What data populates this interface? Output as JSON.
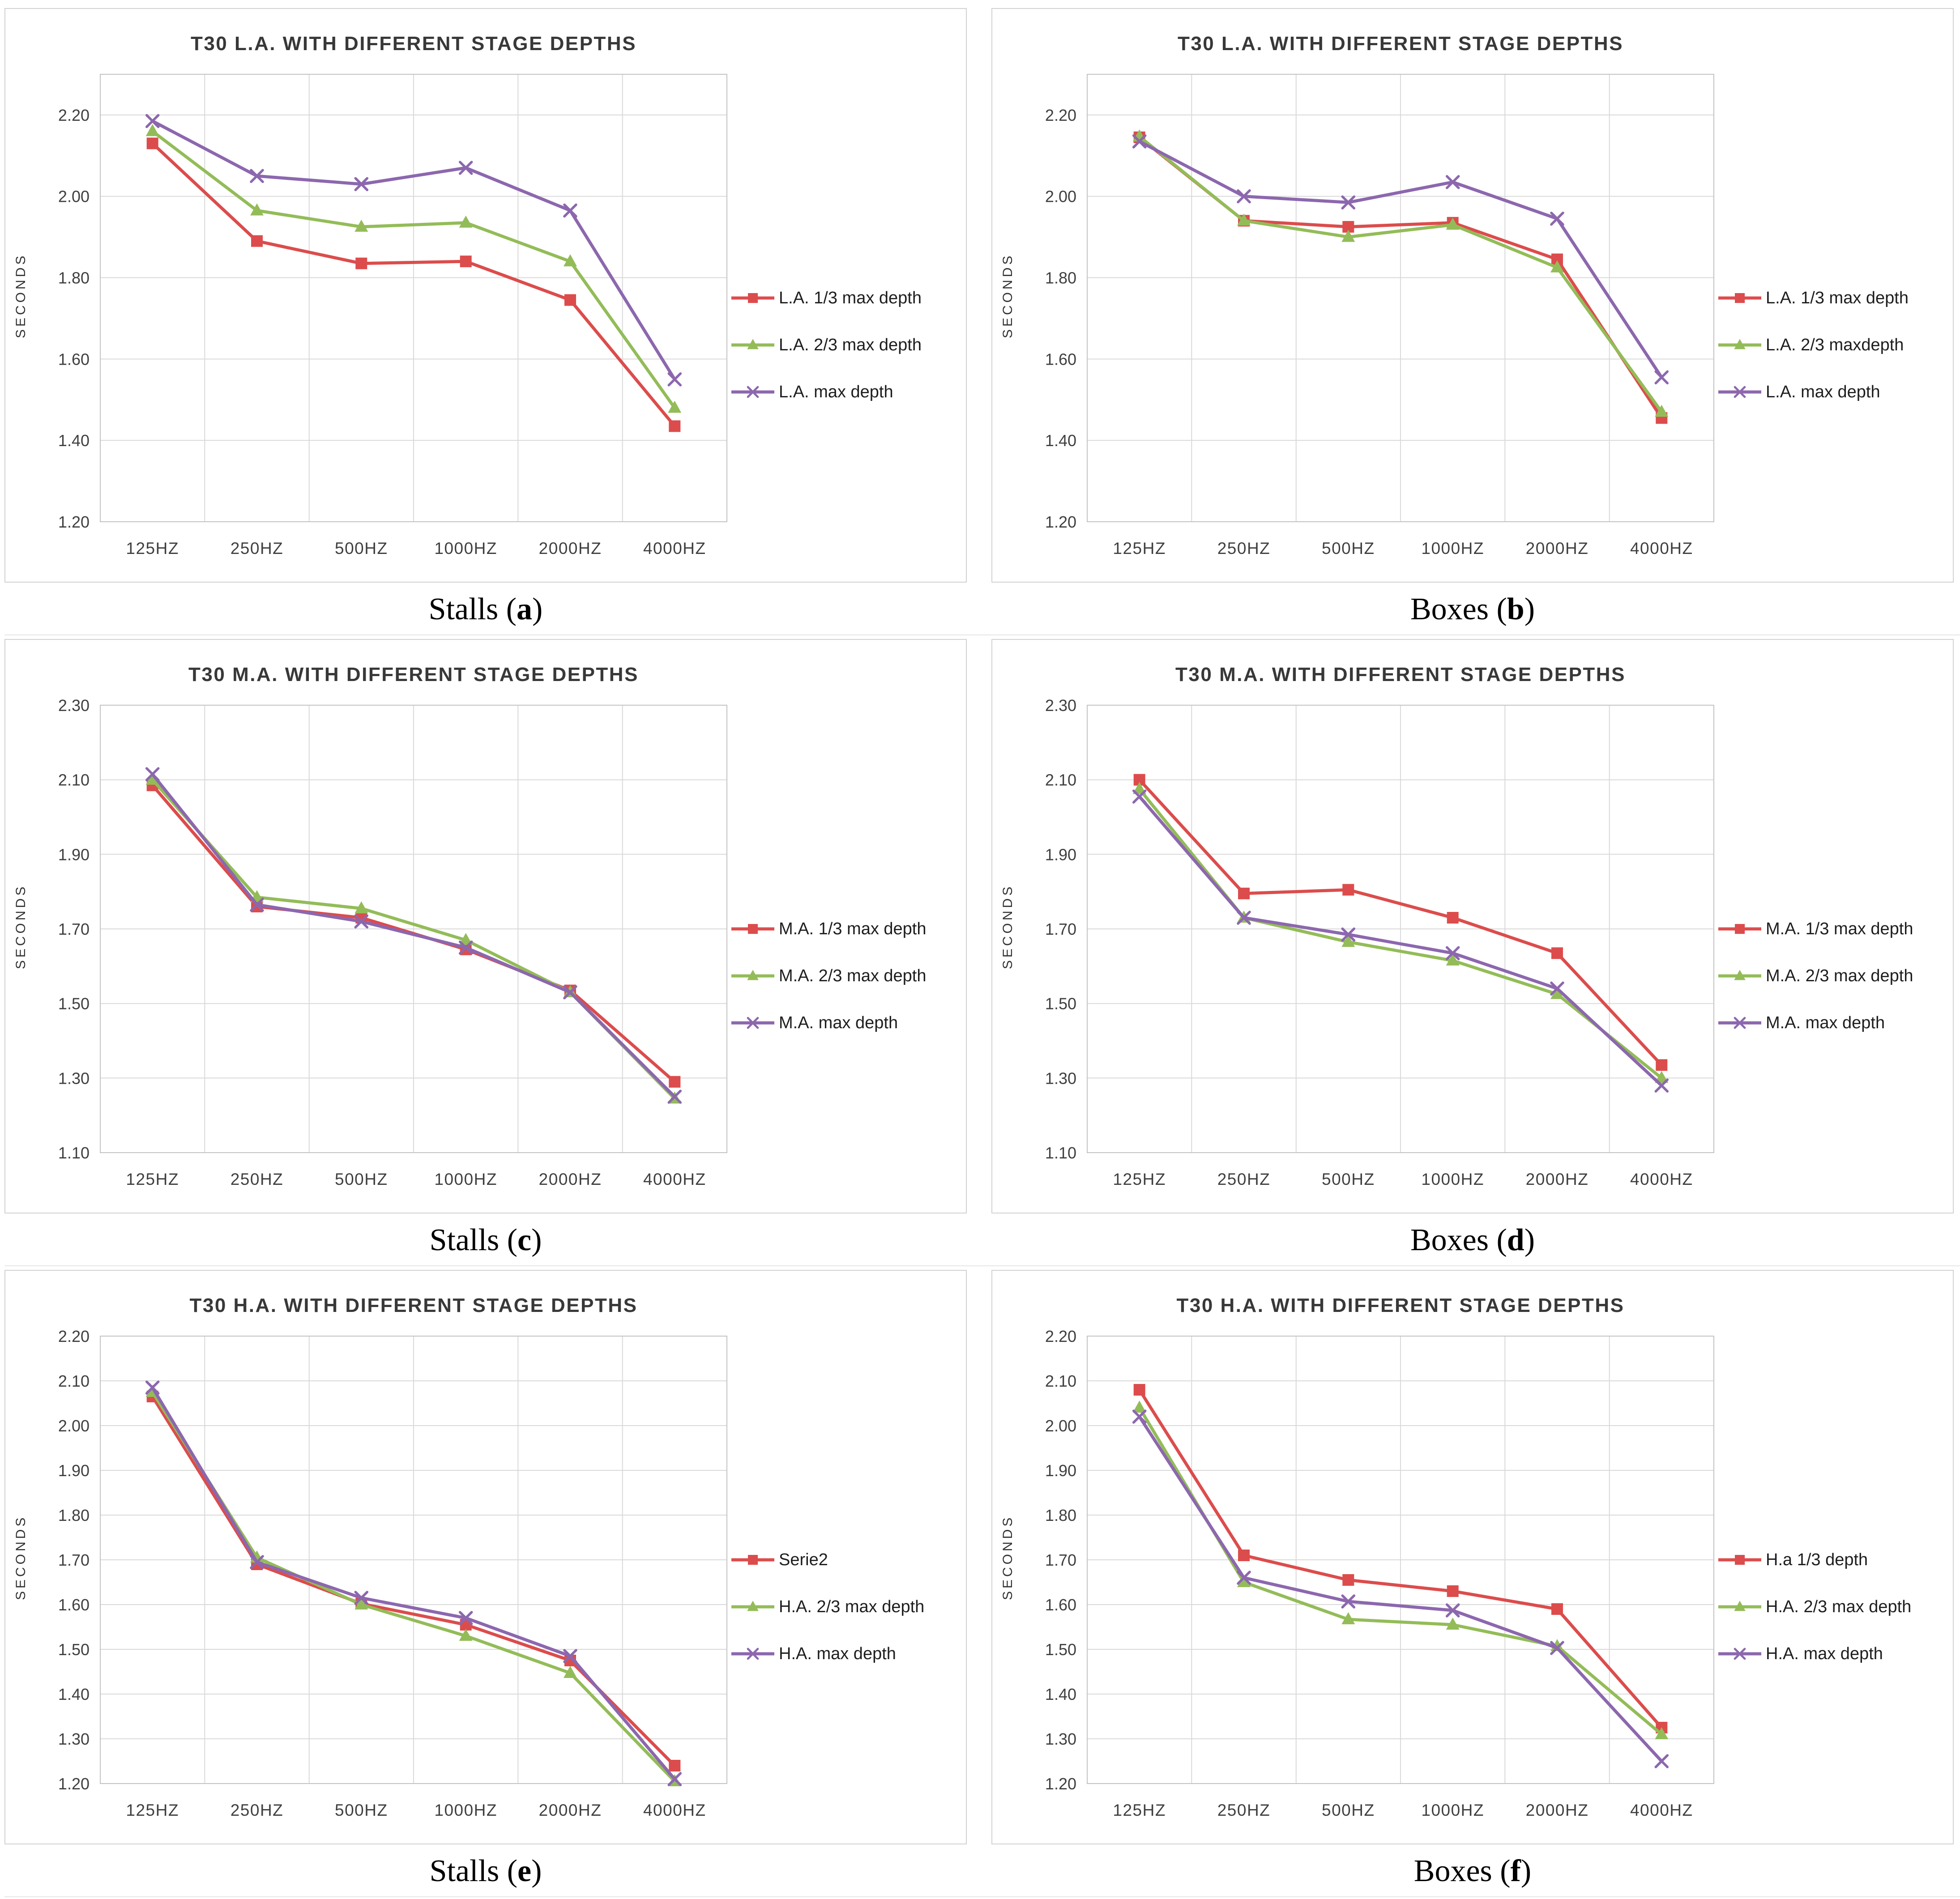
{
  "page": {
    "background": "#ffffff"
  },
  "styles": {
    "series_colors": {
      "red": "#DC4C4C",
      "green": "#93BC58",
      "purple": "#8C67AE"
    },
    "grid_color": "#D9D9D9",
    "plot_border_color": "#C3C3C3",
    "panel_border_color": "#D2D2D2",
    "tick_text_color": "#3F3F3F",
    "title_text_color": "#383838"
  },
  "chart_data": [
    {
      "panel": "a",
      "type": "line",
      "title": "T30 L.A. WITH DIFFERENT STAGE DEPTHS",
      "y_axis_title": "SECONDS",
      "caption": {
        "text": "Stalls",
        "open": " (",
        "letter": "a",
        "close": ")"
      },
      "categories": [
        "125HZ",
        "250HZ",
        "500HZ",
        "1000HZ",
        "2000HZ",
        "4000HZ"
      ],
      "y_axis": {
        "min": 1.2,
        "max": 2.3,
        "tick_values": [
          1.2,
          1.4,
          1.6,
          1.8,
          2.0,
          2.2
        ],
        "tick_labels": [
          "1.20",
          "1.40",
          "1.60",
          "1.80",
          "2.00",
          "2.20"
        ]
      },
      "legend_position": "right",
      "grid": true,
      "series": [
        {
          "name": "L.A. 1/3 max depth",
          "color": "red",
          "marker": "square",
          "values": [
            2.13,
            1.89,
            1.835,
            1.84,
            1.745,
            1.435
          ]
        },
        {
          "name": "L.A. 2/3 max depth",
          "color": "green",
          "marker": "triangle",
          "values": [
            2.16,
            1.965,
            1.925,
            1.935,
            1.84,
            1.48
          ]
        },
        {
          "name": "L.A. max depth",
          "color": "purple",
          "marker": "x",
          "values": [
            2.185,
            2.05,
            2.03,
            2.07,
            1.965,
            1.55
          ]
        }
      ]
    },
    {
      "panel": "b",
      "type": "line",
      "title": "T30 L.A. WITH DIFFERENT STAGE DEPTHS",
      "y_axis_title": "SECONDS",
      "caption": {
        "text": "Boxes",
        "open": " (",
        "letter": "b",
        "close": ")"
      },
      "categories": [
        "125HZ",
        "250HZ",
        "500HZ",
        "1000HZ",
        "2000HZ",
        "4000HZ"
      ],
      "y_axis": {
        "min": 1.2,
        "max": 2.3,
        "tick_values": [
          1.2,
          1.4,
          1.6,
          1.8,
          2.0,
          2.2
        ],
        "tick_labels": [
          "1.20",
          "1.40",
          "1.60",
          "1.80",
          "2.00",
          "2.20"
        ]
      },
      "legend_position": "right",
      "grid": true,
      "series": [
        {
          "name": "L.A. 1/3 max depth",
          "color": "red",
          "marker": "square",
          "values": [
            2.145,
            1.94,
            1.925,
            1.935,
            1.845,
            1.455
          ]
        },
        {
          "name": "L.A. 2/3 maxdepth",
          "color": "green",
          "marker": "triangle",
          "values": [
            2.147,
            1.94,
            1.9,
            1.93,
            1.825,
            1.47
          ]
        },
        {
          "name": "L.A. max depth",
          "color": "purple",
          "marker": "x",
          "values": [
            2.135,
            2.0,
            1.985,
            2.035,
            1.945,
            1.555
          ]
        }
      ]
    },
    {
      "panel": "c",
      "type": "line",
      "title": "T30 M.A. WITH DIFFERENT STAGE DEPTHS",
      "y_axis_title": "SECONDS",
      "caption": {
        "text": "Stalls",
        "open": " (",
        "letter": "c",
        "close": ")"
      },
      "categories": [
        "125HZ",
        "250HZ",
        "500HZ",
        "1000HZ",
        "2000HZ",
        "4000HZ"
      ],
      "y_axis": {
        "min": 1.1,
        "max": 2.3,
        "tick_values": [
          1.1,
          1.3,
          1.5,
          1.7,
          1.9,
          2.1,
          2.3
        ],
        "tick_labels": [
          "1.10",
          "1.30",
          "1.50",
          "1.70",
          "1.90",
          "2.10",
          "2.30"
        ]
      },
      "legend_position": "right",
      "grid": true,
      "series": [
        {
          "name": "M.A. 1/3 max depth",
          "color": "red",
          "marker": "square",
          "values": [
            2.085,
            1.76,
            1.73,
            1.645,
            1.535,
            1.29
          ]
        },
        {
          "name": "M.A. 2/3 max depth",
          "color": "green",
          "marker": "triangle",
          "values": [
            2.1,
            1.785,
            1.755,
            1.67,
            1.53,
            1.245
          ]
        },
        {
          "name": "M.A. max depth",
          "color": "purple",
          "marker": "x",
          "values": [
            2.115,
            1.765,
            1.72,
            1.65,
            1.53,
            1.25
          ]
        }
      ]
    },
    {
      "panel": "d",
      "type": "line",
      "title": "T30 M.A. WITH DIFFERENT STAGE DEPTHS",
      "y_axis_title": "SECONDS",
      "caption": {
        "text": "Boxes",
        "open": " (",
        "letter": "d",
        "close": ")"
      },
      "categories": [
        "125HZ",
        "250HZ",
        "500HZ",
        "1000HZ",
        "2000HZ",
        "4000HZ"
      ],
      "y_axis": {
        "min": 1.1,
        "max": 2.3,
        "tick_values": [
          1.1,
          1.3,
          1.5,
          1.7,
          1.9,
          2.1,
          2.3
        ],
        "tick_labels": [
          "1.10",
          "1.30",
          "1.50",
          "1.70",
          "1.90",
          "2.10",
          "2.30"
        ]
      },
      "legend_position": "right",
      "grid": true,
      "series": [
        {
          "name": "M.A. 1/3 max depth",
          "color": "red",
          "marker": "square",
          "values": [
            2.1,
            1.795,
            1.805,
            1.73,
            1.635,
            1.335
          ]
        },
        {
          "name": "M.A. 2/3 max depth",
          "color": "green",
          "marker": "triangle",
          "values": [
            2.075,
            1.73,
            1.665,
            1.615,
            1.525,
            1.3
          ]
        },
        {
          "name": "M.A. max depth",
          "color": "purple",
          "marker": "x",
          "values": [
            2.055,
            1.73,
            1.685,
            1.635,
            1.54,
            1.28
          ]
        }
      ]
    },
    {
      "panel": "e",
      "type": "line",
      "title": "T30 H.A. WITH DIFFERENT STAGE DEPTHS",
      "y_axis_title": "SECONDS",
      "caption": {
        "text": "Stalls",
        "open": " (",
        "letter": "e",
        "close": ")"
      },
      "categories": [
        "125HZ",
        "250HZ",
        "500HZ",
        "1000HZ",
        "2000HZ",
        "4000HZ"
      ],
      "y_axis": {
        "min": 1.2,
        "max": 2.2,
        "tick_values": [
          1.2,
          1.3,
          1.4,
          1.5,
          1.6,
          1.7,
          1.8,
          1.9,
          2.0,
          2.1,
          2.2
        ],
        "tick_labels": [
          "1.20",
          "1.30",
          "1.40",
          "1.50",
          "1.60",
          "1.70",
          "1.80",
          "1.90",
          "2.00",
          "2.10",
          "2.20"
        ]
      },
      "legend_position": "right",
      "grid": true,
      "series": [
        {
          "name": "Serie2",
          "color": "red",
          "marker": "square",
          "values": [
            2.065,
            1.69,
            1.602,
            1.555,
            1.475,
            1.24
          ]
        },
        {
          "name": "H.A. 2/3 max depth",
          "color": "green",
          "marker": "triangle",
          "values": [
            2.075,
            1.705,
            1.6,
            1.53,
            1.447,
            1.205
          ]
        },
        {
          "name": "H.A. max depth",
          "color": "purple",
          "marker": "x",
          "values": [
            2.085,
            1.695,
            1.615,
            1.57,
            1.485,
            1.21
          ]
        }
      ]
    },
    {
      "panel": "f",
      "type": "line",
      "title": "T30 H.A. WITH DIFFERENT STAGE DEPTHS",
      "y_axis_title": "SECONDS",
      "caption": {
        "text": "Boxes",
        "open": " (",
        "letter": "f",
        "close": ")"
      },
      "categories": [
        "125HZ",
        "250HZ",
        "500HZ",
        "1000HZ",
        "2000HZ",
        "4000HZ"
      ],
      "y_axis": {
        "min": 1.2,
        "max": 2.2,
        "tick_values": [
          1.2,
          1.3,
          1.4,
          1.5,
          1.6,
          1.7,
          1.8,
          1.9,
          2.0,
          2.1,
          2.2
        ],
        "tick_labels": [
          "1.20",
          "1.30",
          "1.40",
          "1.50",
          "1.60",
          "1.70",
          "1.80",
          "1.90",
          "2.00",
          "2.10",
          "2.20"
        ]
      },
      "legend_position": "right",
      "grid": true,
      "series": [
        {
          "name": "H.a 1/3 depth",
          "color": "red",
          "marker": "square",
          "values": [
            2.08,
            1.71,
            1.655,
            1.63,
            1.59,
            1.325
          ]
        },
        {
          "name": "H.A. 2/3 max depth",
          "color": "green",
          "marker": "triangle",
          "values": [
            2.04,
            1.65,
            1.567,
            1.555,
            1.507,
            1.31
          ]
        },
        {
          "name": "H.A. max depth",
          "color": "purple",
          "marker": "x",
          "values": [
            2.02,
            1.66,
            1.607,
            1.587,
            1.503,
            1.25
          ]
        }
      ]
    }
  ]
}
